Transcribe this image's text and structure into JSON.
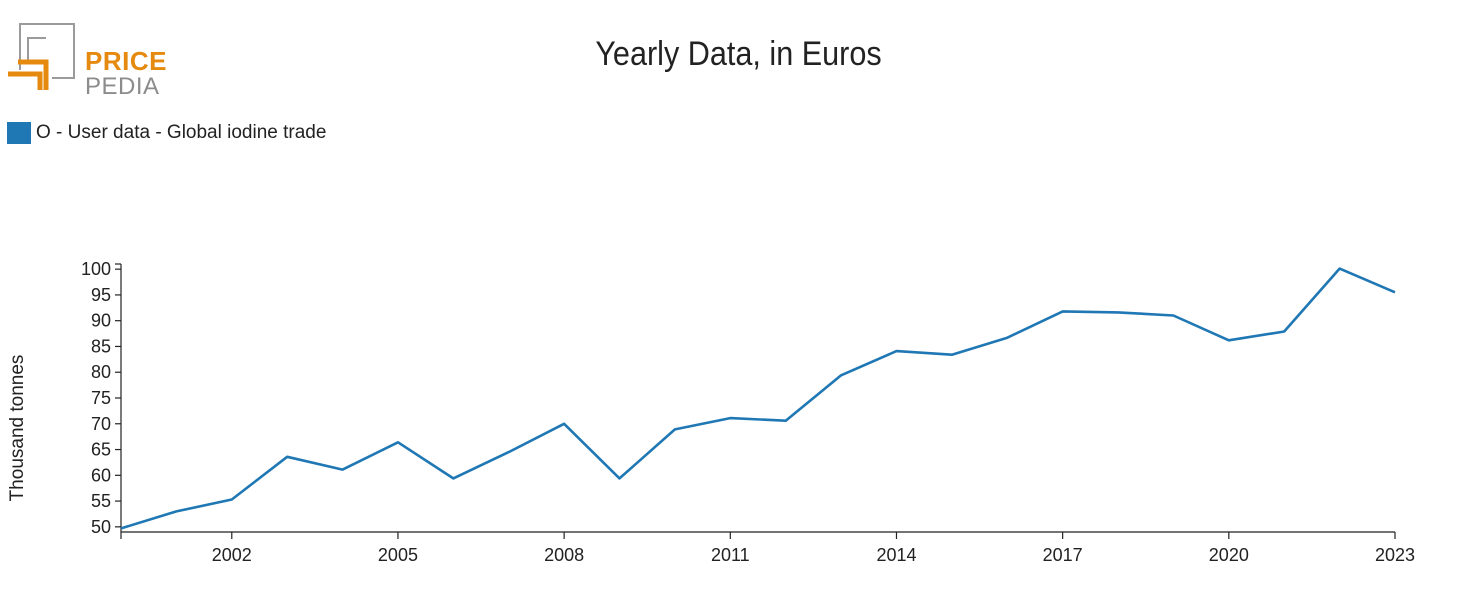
{
  "logo": {
    "word1": "PRICE",
    "word2": "PEDIA",
    "primary_color": "#e58a0e",
    "secondary_color": "#8c8c8c"
  },
  "chart_data": {
    "type": "line",
    "title": "Yearly Data, in Euros",
    "ylabel": "Thousand tonnes",
    "xlabel": "",
    "legend_position": "top-left",
    "grid": false,
    "xlim": [
      2000,
      2023
    ],
    "ylim": [
      49,
      101
    ],
    "x_ticks": [
      2002,
      2005,
      2008,
      2011,
      2014,
      2017,
      2020,
      2023
    ],
    "y_ticks": [
      50,
      55,
      60,
      65,
      70,
      75,
      80,
      85,
      90,
      95,
      100
    ],
    "series": [
      {
        "name": "O - User data - Global iodine trade",
        "color": "#1f77b4",
        "x": [
          2000,
          2001,
          2002,
          2003,
          2004,
          2005,
          2006,
          2007,
          2008,
          2009,
          2010,
          2011,
          2012,
          2013,
          2014,
          2015,
          2016,
          2017,
          2018,
          2019,
          2020,
          2021,
          2022,
          2023
        ],
        "values": [
          49.7,
          53.0,
          55.3,
          63.6,
          61.1,
          66.4,
          59.4,
          64.5,
          70.0,
          59.4,
          68.9,
          71.1,
          70.6,
          79.4,
          84.1,
          83.4,
          86.7,
          91.8,
          91.6,
          91.0,
          86.2,
          87.9,
          100.1,
          95.5
        ]
      }
    ]
  }
}
